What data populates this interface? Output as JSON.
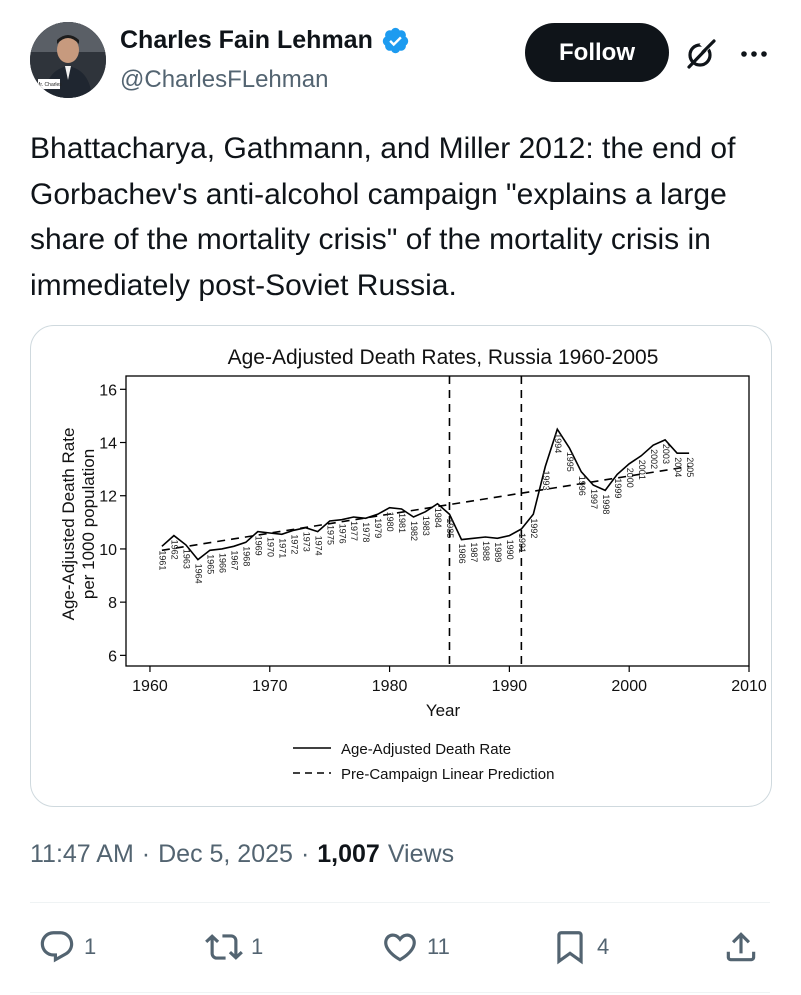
{
  "author": {
    "display_name": "Charles Fain Lehman",
    "handle": "@CharlesFLehman",
    "avatar_nameplate": "Mr. Charles"
  },
  "header": {
    "follow_label": "Follow"
  },
  "tweet": {
    "text": "Bhattacharya, Gathmann, and Miller 2012: the end of Gorbachev's anti-alcohol campaign \"explains a large share of the mortality crisis\" of the mortality crisis in immediately post-Soviet Russia."
  },
  "meta": {
    "time": "11:47 AM",
    "sep1": "·",
    "date": "Dec 5, 2025",
    "sep2": "·",
    "views_count": "1,007",
    "views_label": "Views"
  },
  "actions": {
    "replies": "1",
    "reposts": "1",
    "likes": "11",
    "bookmarks": "4"
  },
  "colors": {
    "accent": "#1d9bf0",
    "text": "#0f1419",
    "muted": "#536471"
  },
  "chart_data": {
    "type": "line",
    "title": "Age-Adjusted Death Rates, Russia 1960-2005",
    "xlabel": "Year",
    "ylabel": "Age-Adjusted Death Rate\nper 1000 population",
    "xlim": [
      1958,
      2010
    ],
    "ylim": [
      5.6,
      16.5
    ],
    "xticks": [
      1960,
      1970,
      1980,
      1990,
      2000,
      2010
    ],
    "yticks": [
      6,
      8,
      10,
      12,
      14,
      16
    ],
    "vlines": [
      1985,
      1991
    ],
    "series": [
      {
        "name": "Age-Adjusted Death Rate",
        "style": "solid",
        "x": [
          1961,
          1962,
          1963,
          1964,
          1965,
          1966,
          1967,
          1968,
          1969,
          1970,
          1971,
          1972,
          1973,
          1974,
          1975,
          1976,
          1977,
          1978,
          1979,
          1980,
          1981,
          1982,
          1983,
          1984,
          1985,
          1986,
          1987,
          1988,
          1989,
          1990,
          1991,
          1992,
          1993,
          1994,
          1995,
          1996,
          1997,
          1998,
          1999,
          2000,
          2001,
          2002,
          2003,
          2004,
          2005
        ],
        "y": [
          10.1,
          10.5,
          10.15,
          9.6,
          9.95,
          10.0,
          10.1,
          10.25,
          10.65,
          10.6,
          10.55,
          10.7,
          10.8,
          10.65,
          11.05,
          11.1,
          11.2,
          11.15,
          11.3,
          11.55,
          11.5,
          11.2,
          11.4,
          11.7,
          11.3,
          10.35,
          10.4,
          10.45,
          10.4,
          10.5,
          10.75,
          11.3,
          13.1,
          14.5,
          13.8,
          12.9,
          12.4,
          12.2,
          12.8,
          13.2,
          13.5,
          13.9,
          14.1,
          13.6,
          13.6
        ]
      },
      {
        "name": "Pre-Campaign Linear Prediction",
        "style": "dashed",
        "x": [
          1961,
          2005
        ],
        "y": [
          9.95,
          13.1
        ]
      }
    ],
    "point_labels": [
      "1961",
      "1962",
      "1963",
      "1964",
      "1965",
      "1966",
      "1967",
      "1968",
      "1969",
      "1970",
      "1971",
      "1972",
      "1973",
      "1974",
      "1975",
      "1976",
      "1977",
      "1978",
      "1979",
      "1980",
      "1981",
      "1982",
      "1983",
      "1984",
      "1985",
      "1986",
      "1987",
      "1988",
      "1989",
      "1990",
      "1991",
      "1992",
      "1993",
      "1994",
      "1995",
      "1996",
      "1997",
      "1998",
      "1999",
      "2000",
      "2001",
      "2002",
      "2003",
      "2004",
      "2005"
    ],
    "legend": [
      "Age-Adjusted Death Rate",
      "Pre-Campaign Linear Prediction"
    ],
    "legend_position": "bottom"
  }
}
